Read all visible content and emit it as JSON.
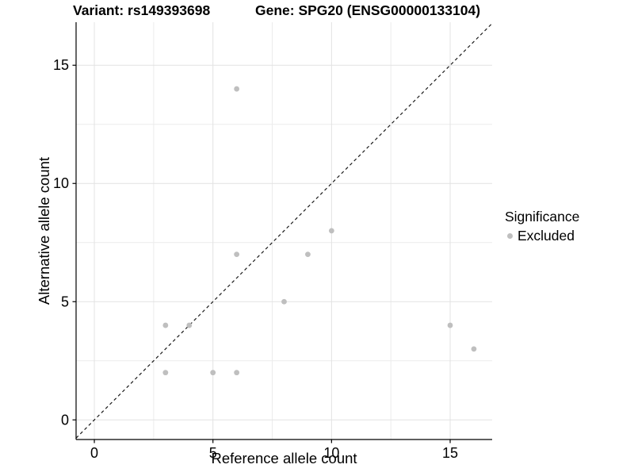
{
  "legend": {
    "title": "Significance",
    "items": [
      {
        "label": "Excluded",
        "marker_color": "#bfbfbf"
      }
    ]
  },
  "chart_data": {
    "type": "scatter",
    "title_left": "Variant: rs149393698",
    "title_right": "Gene: SPG20 (ENSG00000133104)",
    "xlabel": "Reference allele count",
    "ylabel": "Alternative allele count",
    "series": [
      {
        "name": "Excluded",
        "points": [
          {
            "x": 3,
            "y": 2
          },
          {
            "x": 3,
            "y": 4
          },
          {
            "x": 4,
            "y": 4
          },
          {
            "x": 5,
            "y": 2
          },
          {
            "x": 6,
            "y": 2
          },
          {
            "x": 6,
            "y": 7
          },
          {
            "x": 6,
            "y": 14
          },
          {
            "x": 8,
            "y": 5
          },
          {
            "x": 9,
            "y": 7
          },
          {
            "x": 10,
            "y": 8
          },
          {
            "x": 15,
            "y": 4
          },
          {
            "x": 16,
            "y": 3
          }
        ]
      }
    ],
    "x_ticks": [
      0,
      5,
      10,
      15
    ],
    "y_ticks": [
      0,
      5,
      10,
      15
    ],
    "x_minor_ticks": [
      2.5,
      7.5,
      12.5
    ],
    "y_minor_ticks": [
      2.5,
      7.5,
      12.5
    ],
    "xlim": [
      -0.77,
      16.77
    ],
    "ylim": [
      -0.83,
      16.82
    ],
    "reference_line": {
      "type": "identity",
      "slope": 1,
      "intercept": 0,
      "style": "dashed"
    },
    "grid": true,
    "legend_position": "right",
    "colors": {
      "point": "#bfbfbf",
      "grid_major": "#e2e2e2",
      "grid_minor": "#ececec",
      "axis": "#000000",
      "dashed_line": "#1a1a1a",
      "background": "#ffffff"
    }
  }
}
